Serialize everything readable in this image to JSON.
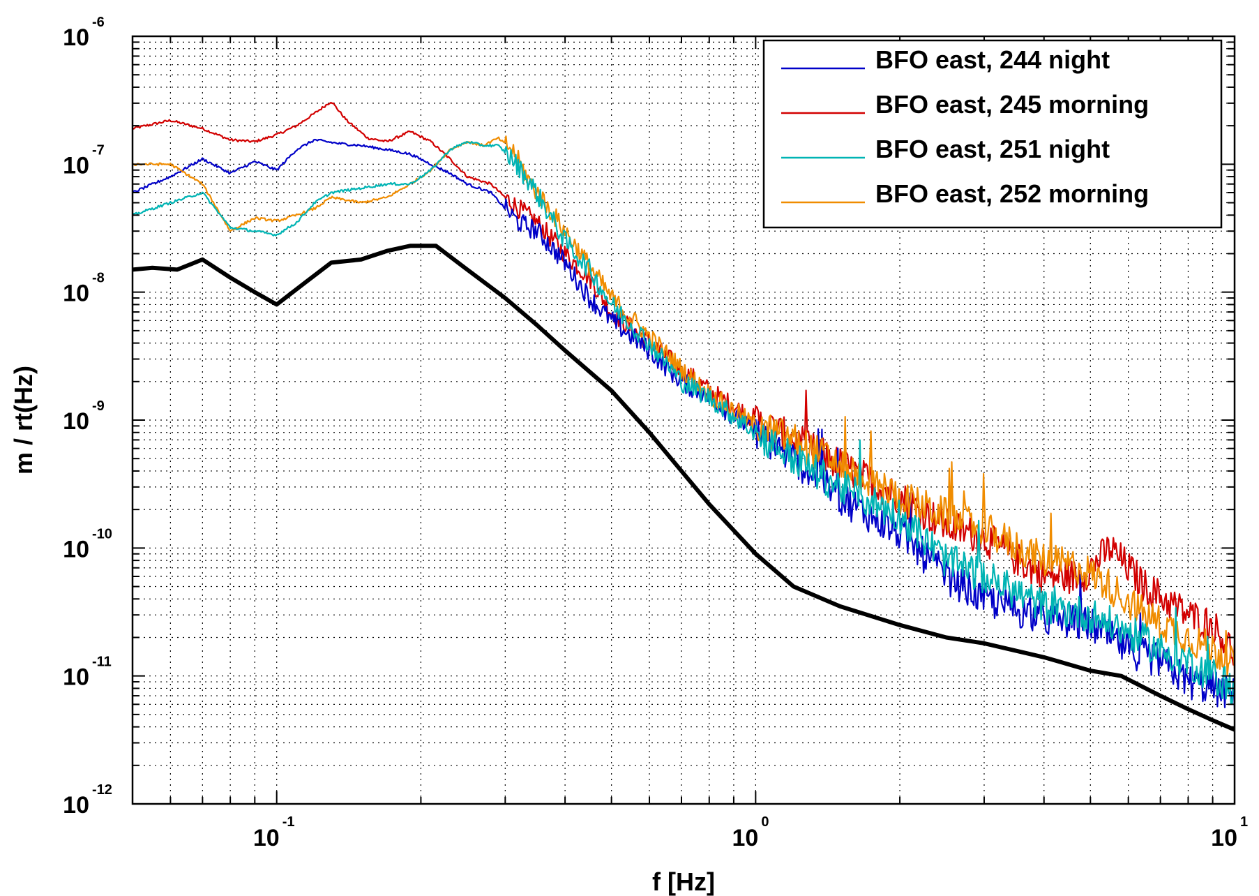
{
  "chart_data": {
    "type": "line",
    "xscale": "log",
    "yscale": "log",
    "xlabel": "f [Hz]",
    "ylabel": "m / rt(Hz)",
    "xlim": [
      0.05,
      10
    ],
    "ylim": [
      1e-12,
      1e-06
    ],
    "grid": true,
    "legend_position": "top-right",
    "x_ticks": [
      {
        "value": 0.1,
        "base": "10",
        "exp": "-1"
      },
      {
        "value": 1,
        "base": "10",
        "exp": "0"
      },
      {
        "value": 10,
        "base": "10",
        "exp": "1"
      }
    ],
    "y_ticks": [
      {
        "value": 1e-12,
        "base": "10",
        "exp": "-12"
      },
      {
        "value": 1e-11,
        "base": "10",
        "exp": "-11"
      },
      {
        "value": 1e-10,
        "base": "10",
        "exp": "-10"
      },
      {
        "value": 1e-09,
        "base": "10",
        "exp": "-9"
      },
      {
        "value": 1e-08,
        "base": "10",
        "exp": "-8"
      },
      {
        "value": 1e-07,
        "base": "10",
        "exp": "-7"
      },
      {
        "value": 1e-06,
        "base": "10",
        "exp": "-6"
      }
    ],
    "series": [
      {
        "name": "BFO east, 244 night",
        "color": "#0000c8",
        "in_legend": true,
        "x": [
          0.05,
          0.06,
          0.07,
          0.08,
          0.09,
          0.1,
          0.11,
          0.12,
          0.135,
          0.15,
          0.17,
          0.19,
          0.21,
          0.23,
          0.25,
          0.28,
          0.3,
          0.32,
          0.35,
          0.4,
          0.45,
          0.5,
          0.6,
          0.7,
          0.8,
          1.0,
          1.2,
          1.5,
          2.0,
          2.5,
          3.0,
          4.0,
          5.0,
          6.0,
          7.0,
          8.0,
          9.0,
          10.0
        ],
        "y": [
          6e-08,
          8e-08,
          1.1e-07,
          8.5e-08,
          1.05e-07,
          9e-08,
          1.3e-07,
          1.55e-07,
          1.45e-07,
          1.4e-07,
          1.3e-07,
          1.2e-07,
          1e-07,
          8.5e-08,
          7e-08,
          6e-08,
          4.5e-08,
          3.5e-08,
          3e-08,
          1.7e-08,
          9e-09,
          6e-09,
          3.5e-09,
          2e-09,
          1.5e-09,
          8e-10,
          5e-10,
          2.5e-10,
          1.3e-10,
          6e-11,
          4e-11,
          2.8e-11,
          2.5e-11,
          1.6e-11,
          1.3e-11,
          9e-12,
          8e-12,
          7e-12
        ]
      },
      {
        "name": "BFO east, 245 morning",
        "color": "#d20000",
        "in_legend": true,
        "x": [
          0.05,
          0.06,
          0.07,
          0.08,
          0.09,
          0.1,
          0.11,
          0.12,
          0.13,
          0.14,
          0.155,
          0.17,
          0.19,
          0.21,
          0.23,
          0.25,
          0.28,
          0.3,
          0.32,
          0.35,
          0.4,
          0.45,
          0.5,
          0.6,
          0.7,
          0.8,
          1.0,
          1.2,
          1.5,
          2.0,
          2.5,
          3.0,
          4.0,
          4.8,
          5.5,
          6.5,
          8.0,
          9.0,
          10.0
        ],
        "y": [
          1.9e-07,
          2.2e-07,
          1.9e-07,
          1.55e-07,
          1.5e-07,
          1.7e-07,
          2e-07,
          2.5e-07,
          3.1e-07,
          2.2e-07,
          1.6e-07,
          1.5e-07,
          1.8e-07,
          1.5e-07,
          1.1e-07,
          8e-08,
          7e-08,
          5.5e-08,
          4.5e-08,
          3.5e-08,
          2e-08,
          1.3e-08,
          7e-09,
          4e-09,
          2.5e-09,
          1.7e-09,
          1e-09,
          7e-10,
          4.5e-10,
          2.5e-10,
          1.5e-10,
          1.2e-10,
          6e-11,
          6e-11,
          1e-10,
          5e-11,
          3e-11,
          2.5e-11,
          1.5e-11
        ]
      },
      {
        "name": "BFO east, 251 night",
        "color": "#00b4b4",
        "in_legend": true,
        "x": [
          0.05,
          0.06,
          0.07,
          0.08,
          0.09,
          0.1,
          0.11,
          0.12,
          0.13,
          0.15,
          0.17,
          0.19,
          0.21,
          0.23,
          0.25,
          0.27,
          0.29,
          0.31,
          0.34,
          0.4,
          0.45,
          0.5,
          0.6,
          0.7,
          0.8,
          1.0,
          1.2,
          1.5,
          2.0,
          2.5,
          3.0,
          4.0,
          5.0,
          6.0,
          7.0,
          8.0,
          9.0,
          10.0
        ],
        "y": [
          4e-08,
          5e-08,
          6e-08,
          3.2e-08,
          3e-08,
          2.8e-08,
          3.5e-08,
          5e-08,
          6e-08,
          6.5e-08,
          7e-08,
          7e-08,
          9e-08,
          1.3e-07,
          1.5e-07,
          1.4e-07,
          1.4e-07,
          1.1e-07,
          7e-08,
          2.5e-08,
          1.5e-08,
          8e-09,
          4e-09,
          2e-09,
          1.5e-09,
          8e-10,
          5e-10,
          3e-10,
          1.8e-10,
          8e-11,
          6e-11,
          3.5e-11,
          3e-11,
          2.2e-11,
          1.6e-11,
          1.3e-11,
          1e-11,
          8e-12
        ]
      },
      {
        "name": "BFO east, 252 morning",
        "color": "#f08c00",
        "in_legend": true,
        "x": [
          0.05,
          0.06,
          0.07,
          0.08,
          0.09,
          0.1,
          0.11,
          0.12,
          0.13,
          0.15,
          0.17,
          0.19,
          0.21,
          0.23,
          0.25,
          0.27,
          0.29,
          0.31,
          0.34,
          0.4,
          0.45,
          0.5,
          0.6,
          0.7,
          0.8,
          1.0,
          1.2,
          1.5,
          2.0,
          2.5,
          3.0,
          4.0,
          4.8,
          5.5,
          6.5,
          8.0,
          9.0,
          10.0
        ],
        "y": [
          1e-07,
          1e-07,
          7e-08,
          3e-08,
          3.8e-08,
          3.6e-08,
          4e-08,
          4.5e-08,
          5.5e-08,
          5e-08,
          5.5e-08,
          7e-08,
          9e-08,
          1.3e-07,
          1.5e-07,
          1.4e-07,
          1.6e-07,
          1.3e-07,
          7e-08,
          3e-08,
          1.6e-08,
          9e-09,
          4.5e-09,
          2.5e-09,
          1.6e-09,
          9e-10,
          7e-10,
          4.5e-10,
          2.5e-10,
          1.8e-10,
          1.4e-10,
          8e-11,
          7e-11,
          5e-11,
          3e-11,
          2e-11,
          1.6e-11,
          1.3e-11
        ]
      },
      {
        "name": "",
        "color": "#000000",
        "in_legend": false,
        "x": [
          0.05,
          0.055,
          0.062,
          0.07,
          0.08,
          0.09,
          0.1,
          0.115,
          0.13,
          0.15,
          0.17,
          0.19,
          0.215,
          0.25,
          0.3,
          0.35,
          0.4,
          0.5,
          0.6,
          0.7,
          0.8,
          1.0,
          1.2,
          1.5,
          2.0,
          2.5,
          3.0,
          4.0,
          5.0,
          5.8,
          7.0,
          8.0,
          9.0,
          10.0
        ],
        "y": [
          1.5e-08,
          1.55e-08,
          1.5e-08,
          1.8e-08,
          1.3e-08,
          1e-08,
          8e-09,
          1.2e-08,
          1.7e-08,
          1.8e-08,
          2.1e-08,
          2.3e-08,
          2.3e-08,
          1.5e-08,
          9e-09,
          5.5e-09,
          3.5e-09,
          1.7e-09,
          8e-10,
          4e-10,
          2.2e-10,
          9e-11,
          5e-11,
          3.5e-11,
          2.5e-11,
          2e-11,
          1.8e-11,
          1.4e-11,
          1.1e-11,
          1e-11,
          7e-12,
          5.5e-12,
          4.5e-12,
          3.8e-12
        ]
      }
    ]
  }
}
